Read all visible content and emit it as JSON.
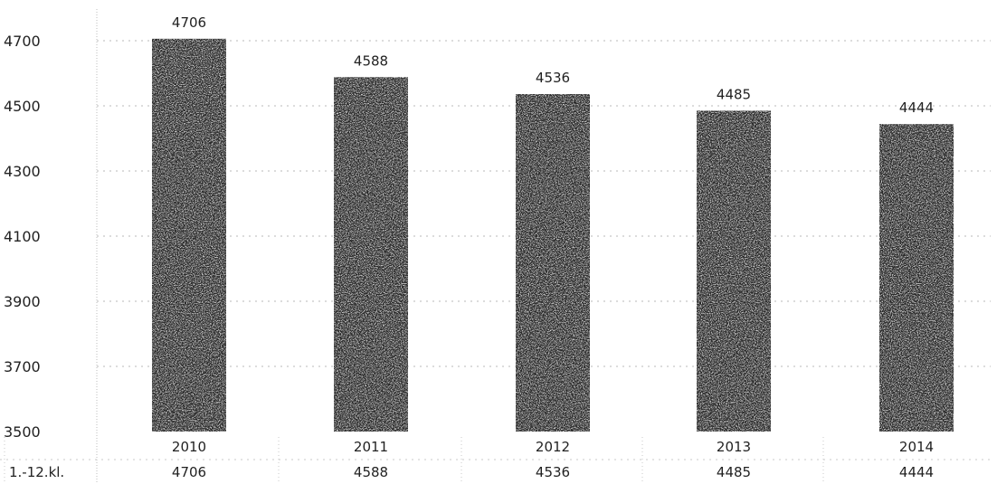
{
  "chart_data": {
    "type": "bar",
    "categories": [
      "2010",
      "2011",
      "2012",
      "2013",
      "2014"
    ],
    "values": [
      4706,
      4588,
      4536,
      4485,
      4444
    ],
    "data_labels": [
      "4706",
      "4588",
      "4536",
      "4485",
      "4444"
    ],
    "yticks": [
      3500,
      3700,
      3900,
      4100,
      4300,
      4500,
      4700
    ],
    "ylim": [
      3500,
      4706
    ],
    "grid": true,
    "bar_color": "#2a2a2a",
    "table": {
      "row_label": "1.-12.kl.",
      "values": [
        "4706",
        "4588",
        "4536",
        "4485",
        "4444"
      ]
    }
  }
}
